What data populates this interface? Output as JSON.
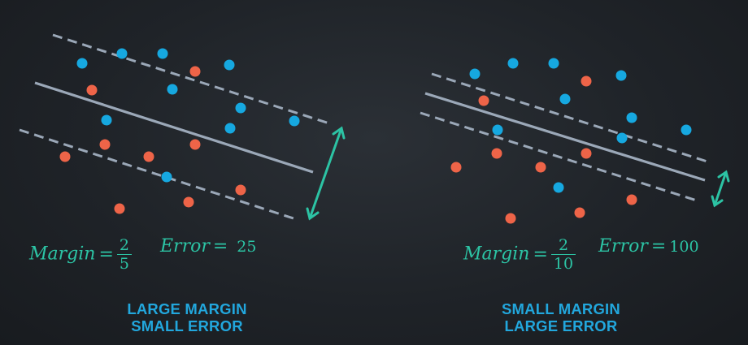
{
  "colors": {
    "blue_point": "#16a8e0",
    "red_point": "#ee6448",
    "line": "#9ba8b8",
    "accent": "#2cc3a4",
    "caption": "#22a7dd"
  },
  "panels": [
    {
      "id": "left",
      "margin_label": "Margin",
      "margin_num": "2",
      "margin_den": "5",
      "error_label": "Error",
      "error_value": "25",
      "caption_line1": "LARGE MARGIN",
      "caption_line2": "SMALL ERROR"
    },
    {
      "id": "right",
      "margin_label": "Margin",
      "margin_num": "2",
      "margin_den": "10",
      "error_label": "Error",
      "error_value": "100",
      "caption_line1": "SMALL MARGIN",
      "caption_line2": "LARGE ERROR"
    }
  ]
}
